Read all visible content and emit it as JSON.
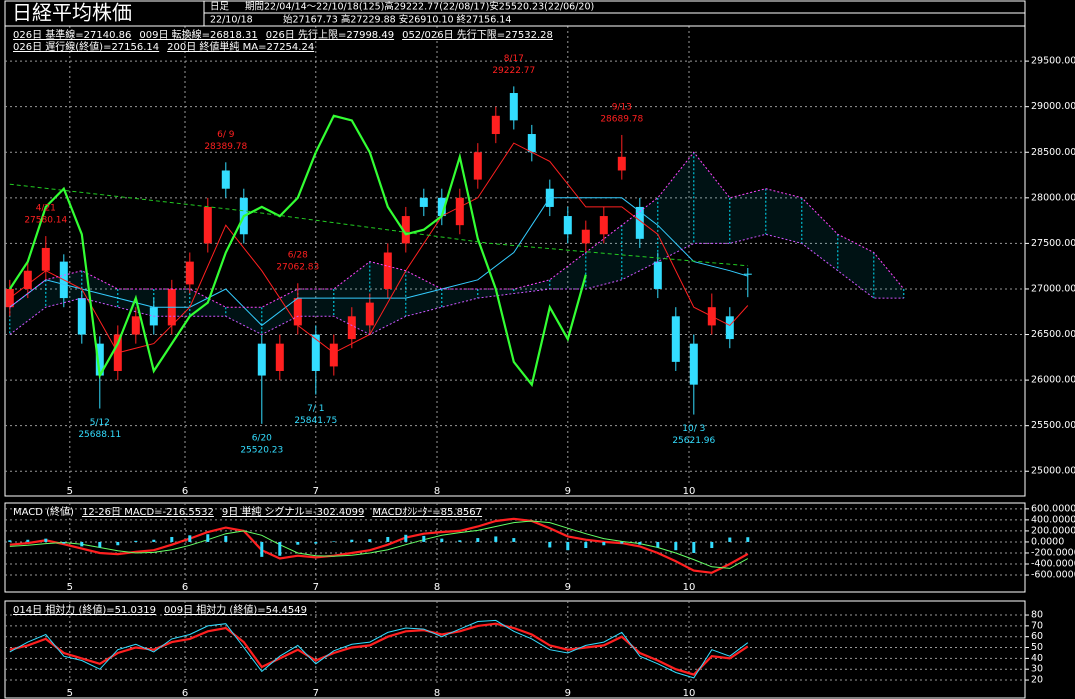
{
  "chart_data": [
    {
      "type": "candlestick",
      "title": "日経平均株価",
      "header": [
        "日足",
        "期間22/04/14～22/10/18(125)高29222.77(22/08/17)安25520.23(22/06/20)",
        "22/10/18",
        "始27167.73 高27229.88 安26910.10 終27156.14"
      ],
      "xlim": [
        -0.8,
        169.2
      ],
      "xticks": [
        {
          "value": 10,
          "label": "5"
        },
        {
          "value": 29.2,
          "label": "6"
        },
        {
          "value": 51,
          "label": "7"
        },
        {
          "value": 71.2,
          "label": "8"
        },
        {
          "value": 93,
          "label": "9"
        },
        {
          "value": 113.2,
          "label": "10"
        }
      ],
      "ylim": [
        24860,
        29600
      ],
      "yticks": [
        {
          "value": 25000,
          "label": "25000.00"
        },
        {
          "value": 25500,
          "label": "25500.00"
        },
        {
          "value": 26000,
          "label": "26000.00"
        },
        {
          "value": 26500,
          "label": "26500.00"
        },
        {
          "value": 27000,
          "label": "27000.00"
        },
        {
          "value": 27500,
          "label": "27500.00"
        },
        {
          "value": 28000,
          "label": "28000.00"
        },
        {
          "value": 28500,
          "label": "28500.00"
        },
        {
          "value": 29000,
          "label": "29000.00"
        },
        {
          "value": 29500,
          "label": "29500.00"
        }
      ],
      "grid": true,
      "hatch_color": "#00e5ff",
      "candles": {
        "up_color": "#ff2020",
        "down_color": "#33ddff",
        "x": [
          0,
          3,
          6,
          9,
          12,
          15,
          18,
          21,
          24,
          27,
          30,
          33,
          36,
          39,
          42,
          45,
          48,
          51,
          54,
          57,
          60,
          63,
          66,
          69,
          72,
          75,
          78,
          81,
          84,
          87,
          90,
          93,
          96,
          99,
          102,
          105,
          108,
          111,
          114,
          117,
          120,
          123
        ],
        "open": [
          26800,
          27000,
          27200,
          27300,
          26900,
          26400,
          26100,
          26500,
          26800,
          26600,
          27050,
          27500,
          28300,
          28000,
          26400,
          26100,
          26600,
          26500,
          26150,
          26450,
          26600,
          27000,
          27500,
          28000,
          28000,
          27700,
          28200,
          28700,
          29150,
          28700,
          28100,
          27800,
          27500,
          27600,
          28300,
          27900,
          27300,
          26700,
          26400,
          26600,
          26700,
          27167.73
        ],
        "high": [
          27100,
          27320,
          27580.14,
          27380,
          26980,
          26480,
          26600,
          26800,
          26900,
          27100,
          27400,
          28000,
          28389.78,
          28100,
          26500,
          26500,
          27062.83,
          26600,
          26500,
          26800,
          26950,
          27500,
          27900,
          28100,
          28100,
          28100,
          28600,
          29000,
          29222.77,
          28800,
          28200,
          27900,
          27750,
          27900,
          28689.78,
          28000,
          27400,
          26800,
          26500,
          26950,
          26800,
          27229.88
        ],
        "low": [
          26700,
          26900,
          27100,
          26800,
          26400,
          25688.11,
          26000,
          26400,
          26500,
          26500,
          26950,
          27400,
          28000,
          27500,
          25520.23,
          26000,
          26500,
          25841.75,
          26050,
          26350,
          26500,
          26900,
          27400,
          27800,
          27700,
          27600,
          28100,
          28600,
          28750,
          28400,
          27800,
          27500,
          27400,
          27500,
          28200,
          27450,
          26900,
          26100,
          25621.96,
          26500,
          26350,
          26910.1
        ],
        "close": [
          27000,
          27200,
          27450,
          26900,
          26500,
          26050,
          26500,
          26700,
          26600,
          27000,
          27300,
          27900,
          28100,
          27600,
          26050,
          26400,
          26900,
          26100,
          26400,
          26700,
          26850,
          27400,
          27800,
          27900,
          27800,
          28000,
          28500,
          28900,
          28850,
          28500,
          27900,
          27600,
          27650,
          27800,
          28450,
          27550,
          27000,
          26200,
          25950,
          26800,
          26450,
          27156.14
        ]
      },
      "annotations": [
        {
          "x": 6,
          "date": "4/21",
          "value": 27580.14
        },
        {
          "x": 15,
          "date": "5/12",
          "value": 25688.11
        },
        {
          "x": 36,
          "date": "6/ 9",
          "value": 28389.78
        },
        {
          "x": 42,
          "date": "6/20",
          "value": 25520.23
        },
        {
          "x": 48,
          "date": "6/28",
          "value": 27062.83
        },
        {
          "x": 51,
          "date": "7/ 1",
          "value": 25841.75
        },
        {
          "x": 84,
          "date": "8/17",
          "value": 29222.77
        },
        {
          "x": 102,
          "date": "9/13",
          "value": 28689.78
        },
        {
          "x": 114,
          "date": "10/ 3",
          "value": 25621.96
        }
      ],
      "series": [
        {
          "name": "026日 基準線=27140.86",
          "color": "#33ccff",
          "style": "line",
          "x": [
            0,
            6,
            12,
            18,
            24,
            30,
            36,
            42,
            48,
            54,
            60,
            66,
            72,
            78,
            84,
            90,
            96,
            102,
            108,
            114,
            120,
            123
          ],
          "values": [
            26800,
            27100,
            27000,
            26900,
            26800,
            26800,
            27000,
            26600,
            26900,
            26900,
            26900,
            26900,
            27000,
            27100,
            27400,
            28000,
            28000,
            28000,
            27700,
            27300,
            27200,
            27140.86
          ]
        },
        {
          "name": "009日 転換線=26818.31",
          "color": "#ff2020",
          "style": "line",
          "x": [
            0,
            6,
            12,
            18,
            24,
            30,
            36,
            42,
            48,
            54,
            60,
            66,
            72,
            78,
            84,
            90,
            96,
            102,
            108,
            114,
            120,
            123
          ],
          "values": [
            26900,
            27200,
            27000,
            26300,
            26400,
            26800,
            27700,
            27200,
            26600,
            26300,
            26500,
            27200,
            27800,
            28000,
            28600,
            28400,
            27900,
            27900,
            27600,
            26800,
            26600,
            26818.31
          ]
        },
        {
          "name": "026日 先行上限=27998.49",
          "color": "#ff44ff",
          "style": "cloud",
          "x": [
            0,
            6,
            12,
            18,
            24,
            30,
            36,
            42,
            48,
            54,
            60,
            66,
            72,
            78,
            84,
            90,
            96,
            102,
            108,
            114,
            120,
            126,
            132,
            138,
            144,
            149
          ],
          "values": [
            26800,
            27100,
            27200,
            27000,
            27000,
            27000,
            26800,
            26800,
            27000,
            27000,
            27300,
            27200,
            27000,
            27000,
            27000,
            27100,
            27400,
            27700,
            28000,
            28500,
            28000,
            28100,
            28000,
            27600,
            27400,
            27000
          ]
        },
        {
          "name": "052/026日 先行下限=27532.28",
          "color": "#cc55ff",
          "style": "cloud",
          "x": [
            0,
            6,
            12,
            18,
            24,
            30,
            36,
            42,
            48,
            54,
            60,
            66,
            72,
            78,
            84,
            90,
            96,
            102,
            108,
            114,
            120,
            126,
            132,
            138,
            144,
            149
          ],
          "values": [
            26500,
            26800,
            26900,
            26800,
            26700,
            26700,
            26700,
            26500,
            26700,
            26700,
            26500,
            26700,
            26800,
            26900,
            26950,
            27000,
            27000,
            27100,
            27300,
            27500,
            27500,
            27600,
            27500,
            27200,
            26900,
            26900
          ]
        },
        {
          "name": "026日 遅行線(終値)=27156.14",
          "color": "#33ff33",
          "style": "bold",
          "x": [
            0,
            3,
            6,
            9,
            12,
            15,
            18,
            21,
            24,
            27,
            30,
            33,
            36,
            39,
            42,
            45,
            48,
            51,
            54,
            57,
            60,
            63,
            66,
            69,
            72,
            75,
            78,
            81,
            84,
            87,
            90,
            93,
            96
          ],
          "values": [
            27000,
            27300,
            27900,
            28100,
            27600,
            26050,
            26400,
            26900,
            26100,
            26400,
            26700,
            26850,
            27400,
            27800,
            27900,
            27800,
            28000,
            28500,
            28900,
            28850,
            28500,
            27900,
            27600,
            27650,
            27800,
            28450,
            27550,
            27000,
            26200,
            25950,
            26800,
            26450,
            27156.14
          ]
        },
        {
          "name": "200日 終値単純 MA=27254.24",
          "color": "#22cc22",
          "style": "dashed",
          "x": [
            0,
            40,
            80,
            123
          ],
          "values": [
            28150,
            27850,
            27500,
            27254.24
          ]
        }
      ]
    },
    {
      "type": "macd",
      "title": "MACD (終値)",
      "xlim": [
        -0.8,
        169.2
      ],
      "xticks": [
        {
          "value": 10,
          "label": "5"
        },
        {
          "value": 29.2,
          "label": "6"
        },
        {
          "value": 51,
          "label": "7"
        },
        {
          "value": 71.2,
          "label": "8"
        },
        {
          "value": 93,
          "label": "9"
        },
        {
          "value": 113.2,
          "label": "10"
        }
      ],
      "ylim": [
        -690,
        670
      ],
      "yticks": [
        {
          "value": 600,
          "label": "600.0000"
        },
        {
          "value": 400,
          "label": "400.0000"
        },
        {
          "value": 200,
          "label": "200.0000"
        },
        {
          "value": 0,
          "label": "0.0000"
        },
        {
          "value": -200,
          "label": "-200.0000"
        },
        {
          "value": -400,
          "label": "-400.0000"
        },
        {
          "value": -600,
          "label": "-600.0000"
        }
      ],
      "grid": true,
      "x": [
        0,
        3,
        6,
        9,
        12,
        15,
        18,
        21,
        24,
        27,
        30,
        33,
        36,
        39,
        42,
        45,
        48,
        51,
        54,
        57,
        60,
        63,
        66,
        69,
        72,
        75,
        78,
        81,
        84,
        87,
        90,
        93,
        96,
        99,
        102,
        105,
        108,
        111,
        114,
        117,
        120,
        123
      ],
      "series": [
        {
          "name": "12-26日 MACD=-216.5532",
          "color": "#ff2020",
          "style": "bold",
          "values": [
            -50,
            -20,
            30,
            -40,
            -120,
            -200,
            -220,
            -180,
            -150,
            -50,
            60,
            180,
            260,
            200,
            -150,
            -300,
            -250,
            -280,
            -250,
            -200,
            -150,
            -50,
            80,
            150,
            180,
            200,
            280,
            380,
            420,
            380,
            250,
            100,
            40,
            0,
            -20,
            -80,
            -200,
            -350,
            -520,
            -560,
            -400,
            -216.5532
          ]
        },
        {
          "name": "9日 単純 シグナル=-302.4099",
          "color": "#66ff66",
          "style": "line",
          "values": [
            -80,
            -60,
            -30,
            -10,
            -40,
            -100,
            -160,
            -200,
            -190,
            -140,
            -60,
            40,
            150,
            200,
            120,
            -50,
            -200,
            -250,
            -260,
            -240,
            -200,
            -140,
            -50,
            40,
            120,
            170,
            210,
            280,
            350,
            380,
            350,
            250,
            150,
            60,
            10,
            -30,
            -100,
            -200,
            -320,
            -450,
            -480,
            -302.4099
          ]
        },
        {
          "name": "MACDｵｼﾚｰﾀｰ=85.8567",
          "color": "#33ddff",
          "style": "bar",
          "values": [
            30,
            40,
            60,
            -30,
            -80,
            -100,
            -60,
            20,
            40,
            90,
            120,
            140,
            110,
            0,
            -270,
            -250,
            -50,
            -30,
            10,
            40,
            50,
            90,
            130,
            110,
            60,
            30,
            70,
            100,
            70,
            0,
            -100,
            -150,
            -110,
            -60,
            -30,
            -50,
            -100,
            -150,
            -200,
            -110,
            80,
            85.8567
          ]
        }
      ]
    },
    {
      "type": "line",
      "xlim": [
        -0.8,
        169.2
      ],
      "xticks": [
        {
          "value": 10,
          "label": "5"
        },
        {
          "value": 29.2,
          "label": "6"
        },
        {
          "value": 51,
          "label": "7"
        },
        {
          "value": 71.2,
          "label": "8"
        },
        {
          "value": 93,
          "label": "9"
        },
        {
          "value": 113.2,
          "label": "10"
        }
      ],
      "ylim": [
        14.5,
        91.1
      ],
      "yticks": [
        80,
        70,
        60,
        50,
        40,
        30,
        20
      ],
      "grid": true,
      "x": [
        0,
        3,
        6,
        9,
        12,
        15,
        18,
        21,
        24,
        27,
        30,
        33,
        36,
        39,
        42,
        45,
        48,
        51,
        54,
        57,
        60,
        63,
        66,
        69,
        72,
        75,
        78,
        81,
        84,
        87,
        90,
        93,
        96,
        99,
        102,
        105,
        108,
        111,
        114,
        117,
        120,
        123
      ],
      "series": [
        {
          "name": "014日 相対力 (終値)=51.0319",
          "color": "#ff2020",
          "style": "bold",
          "values": [
            48,
            52,
            58,
            45,
            40,
            35,
            45,
            50,
            48,
            55,
            58,
            65,
            68,
            55,
            32,
            40,
            48,
            38,
            45,
            50,
            52,
            60,
            65,
            66,
            62,
            65,
            70,
            72,
            68,
            62,
            52,
            48,
            50,
            52,
            60,
            45,
            38,
            30,
            25,
            42,
            40,
            51.0319
          ]
        },
        {
          "name": "009日 相対力 (終値)=54.4549",
          "color": "#33ddff",
          "style": "line",
          "values": [
            46,
            55,
            62,
            42,
            38,
            30,
            48,
            53,
            46,
            58,
            62,
            70,
            72,
            50,
            28,
            42,
            52,
            35,
            47,
            53,
            55,
            64,
            68,
            67,
            60,
            67,
            74,
            75,
            65,
            58,
            48,
            45,
            52,
            55,
            64,
            42,
            35,
            27,
            22,
            48,
            42,
            54.4549
          ]
        }
      ]
    }
  ]
}
